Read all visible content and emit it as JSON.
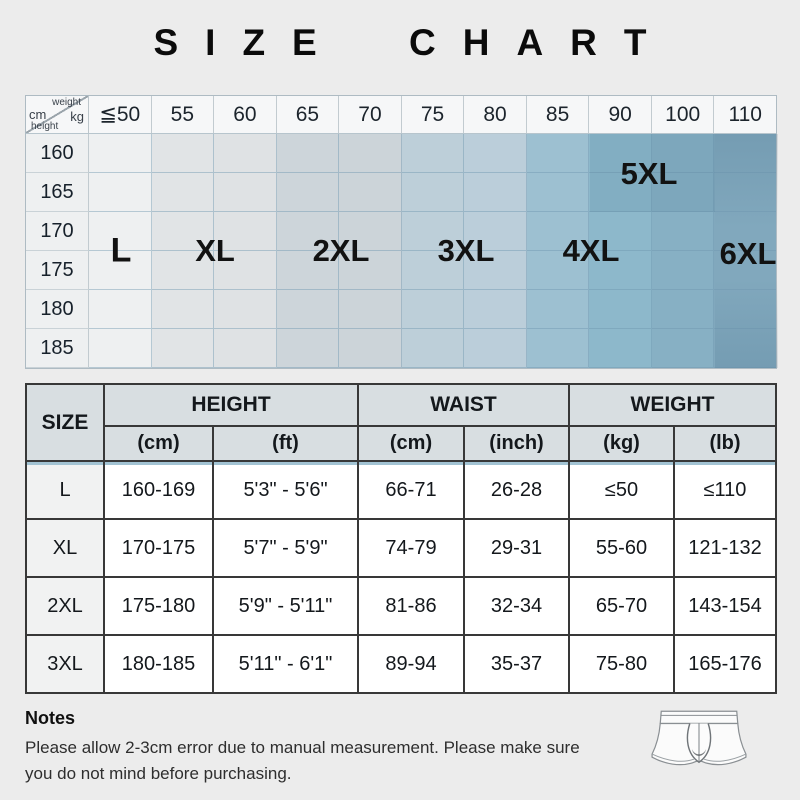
{
  "page": {
    "background": "#ececec",
    "title": "SIZE CHART"
  },
  "chart_data": [
    {
      "type": "heatmap",
      "title": "Size by height and weight",
      "xlabel": "weight (kg)",
      "ylabel": "height (cm)",
      "x_categories": [
        "≦50",
        "55",
        "60",
        "65",
        "70",
        "75",
        "80",
        "85",
        "90",
        "100",
        "110"
      ],
      "y_categories": [
        "160",
        "165",
        "170",
        "175",
        "180",
        "185"
      ],
      "regions": [
        {
          "size": "L",
          "weight_kg_columns": [
            "≦50"
          ]
        },
        {
          "size": "XL",
          "weight_kg_columns": [
            "55",
            "60"
          ]
        },
        {
          "size": "2XL",
          "weight_kg_columns": [
            "65",
            "70"
          ]
        },
        {
          "size": "3XL",
          "weight_kg_columns": [
            "75",
            "80"
          ]
        },
        {
          "size": "4XL",
          "weight_kg_columns": [
            "85",
            "90"
          ]
        },
        {
          "size": "5XL",
          "weight_kg_columns": [
            "90",
            "100"
          ]
        },
        {
          "size": "6XL",
          "weight_kg_columns": [
            "110"
          ]
        }
      ],
      "legend_position": "none",
      "grid": true
    },
    {
      "type": "table",
      "columns": [
        "SIZE",
        "HEIGHT (cm)",
        "HEIGHT (ft)",
        "WAIST (cm)",
        "WAIST (inch)",
        "WEIGHT (kg)",
        "WEIGHT (lb)"
      ],
      "rows": [
        [
          "L",
          "160-169",
          "5'3\" - 5'6\"",
          "66-71",
          "26-28",
          "≤50",
          "≤110"
        ],
        [
          "XL",
          "170-175",
          "5'7\" - 5'9\"",
          "74-79",
          "29-31",
          "55-60",
          "121-132"
        ],
        [
          "2XL",
          "175-180",
          "5'9\" - 5'11\"",
          "81-86",
          "32-34",
          "65-70",
          "143-154"
        ],
        [
          "3XL",
          "180-185",
          "5'11\" - 6'1\"",
          "89-94",
          "35-37",
          "75-80",
          "165-176"
        ]
      ]
    }
  ],
  "size_grid": {
    "corner": {
      "weight": "weight",
      "kg": "kg",
      "cm": "cm",
      "height": "height"
    },
    "col_headers": [
      "≦50",
      "55",
      "60",
      "65",
      "70",
      "75",
      "80",
      "85",
      "90",
      "100",
      "110"
    ],
    "col_colors": [
      "#eef0f1",
      "#e1e4e6",
      "#dfe2e4",
      "#cdd5da",
      "#ccd4d9",
      "#bdcfd9",
      "#bbceda",
      "#9dc0d1",
      "#8db8cb",
      "#87b0c4",
      "#81a8bd"
    ],
    "row_labels": [
      "160",
      "165",
      "170",
      "175",
      "180",
      "185"
    ],
    "size_labels": [
      {
        "label": "L"
      },
      {
        "label": "XL"
      },
      {
        "label": "2XL"
      },
      {
        "label": "3XL"
      },
      {
        "label": "4XL"
      },
      {
        "label": "5XL"
      },
      {
        "label": "6XL"
      }
    ]
  },
  "detail_table": {
    "size_header": "SIZE",
    "groups": [
      {
        "label": "HEIGHT",
        "subs": [
          "(cm)",
          "(ft)"
        ]
      },
      {
        "label": "WAIST",
        "subs": [
          "(cm)",
          "(inch)"
        ]
      },
      {
        "label": "WEIGHT",
        "subs": [
          "(kg)",
          "(lb)"
        ]
      }
    ],
    "rows": [
      {
        "size": "L",
        "cells": [
          "160-169",
          "5'3\" - 5'6\"",
          "66-71",
          "26-28",
          "≤50",
          "≤110"
        ]
      },
      {
        "size": "XL",
        "cells": [
          "170-175",
          "5'7\" - 5'9\"",
          "74-79",
          "29-31",
          "55-60",
          "121-132"
        ]
      },
      {
        "size": "2XL",
        "cells": [
          "175-180",
          "5'9\" - 5'11\"",
          "81-86",
          "32-34",
          "65-70",
          "143-154"
        ]
      },
      {
        "size": "3XL",
        "cells": [
          "180-185",
          "5'11\" - 6'1\"",
          "89-94",
          "35-37",
          "75-80",
          "165-176"
        ]
      }
    ]
  },
  "notes": {
    "heading": "Notes",
    "lines": [
      "Please allow 2-3cm error due to manual measurement. Please make sure",
      "you do not mind before purchasing."
    ]
  },
  "icon": {
    "name": "boxer-briefs-icon"
  }
}
